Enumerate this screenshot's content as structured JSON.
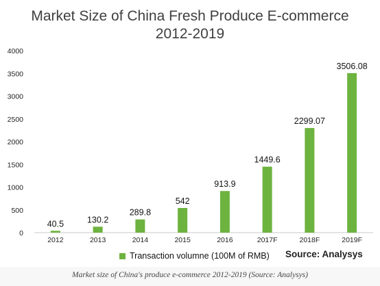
{
  "chart_data": {
    "type": "bar",
    "title_lines": [
      "Market Size of China Fresh Produce E-commerce",
      "2012-2019"
    ],
    "categories": [
      "2012",
      "2013",
      "2014",
      "2015",
      "2016",
      "2017F",
      "2018F",
      "2019F"
    ],
    "series": [
      {
        "name": "Transaction volumne (100M of RMB)",
        "values": [
          40.5,
          130.2,
          289.8,
          542,
          913.9,
          1449.6,
          2299.07,
          3506.08
        ]
      }
    ],
    "data_labels": [
      "40.5",
      "130.2",
      "289.8",
      "542",
      "913.9",
      "1449.6",
      "2299.07",
      "3506.08"
    ],
    "y_ticks": [
      0,
      500,
      1000,
      1500,
      2000,
      2500,
      3000,
      3500,
      4000
    ],
    "ylim": [
      0,
      4000
    ],
    "grid": false,
    "legend_position": "bottom",
    "bar_color": "#6db33f",
    "source": "Source: Analysys"
  },
  "caption": "Market size of China's produce e-commerce 2012-2019 (Source: Analysys)"
}
